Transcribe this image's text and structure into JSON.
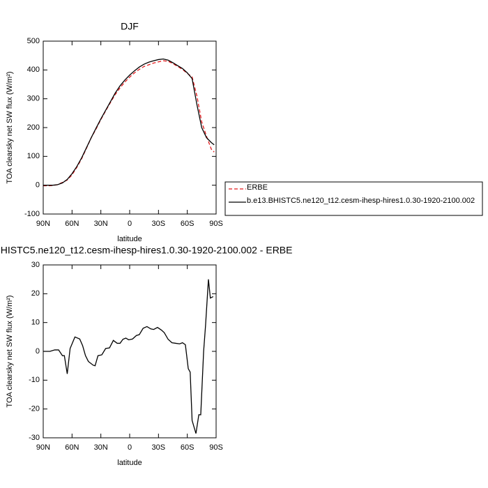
{
  "chart_data": [
    {
      "type": "line",
      "title": "DJF",
      "xlabel": "latitude",
      "ylabel": "TOA clearsky net SW flux (W/m²)",
      "xlim": [
        90,
        -90
      ],
      "ylim": [
        -100,
        500
      ],
      "xticks": [
        {
          "value": 90,
          "label": "90N"
        },
        {
          "value": 60,
          "label": "60N"
        },
        {
          "value": 30,
          "label": "30N"
        },
        0,
        {
          "value": -30,
          "label": "30S"
        },
        {
          "value": -60,
          "label": "60S"
        },
        {
          "value": -90,
          "label": "90S"
        }
      ],
      "yticks": [
        -100,
        0,
        100,
        200,
        300,
        400,
        500
      ],
      "legend": "right",
      "x": [
        90,
        85,
        80,
        75,
        70,
        65,
        60,
        55,
        50,
        45,
        40,
        35,
        30,
        25,
        20,
        15,
        10,
        5,
        0,
        -5,
        -10,
        -15,
        -20,
        -25,
        -30,
        -35,
        -40,
        -45,
        -50,
        -55,
        -60,
        -65,
        -70,
        -75,
        -80,
        -85,
        -88
      ],
      "series": [
        {
          "name": "ERBE",
          "color": "#e41a1c",
          "style": "dashed",
          "values": [
            -2,
            -2,
            -1,
            2,
            10,
            18,
            36,
            62,
            92,
            128,
            165,
            195,
            228,
            258,
            287,
            315,
            338,
            358,
            375,
            390,
            402,
            412,
            418,
            424,
            428,
            432,
            430,
            422,
            412,
            402,
            388,
            376,
            310,
            220,
            170,
            125,
            115
          ]
        },
        {
          "name": "b.e13.BHISTC5.ne120_t12.cesm-ihesp-hires1.0.30-1920-2100.002",
          "color": "#000000",
          "style": "solid",
          "values": [
            0,
            0,
            0,
            2,
            8,
            20,
            40,
            65,
            95,
            130,
            165,
            198,
            230,
            260,
            290,
            320,
            345,
            365,
            382,
            397,
            410,
            420,
            427,
            432,
            436,
            438,
            434,
            425,
            415,
            405,
            390,
            370,
            280,
            200,
            165,
            148,
            140
          ]
        }
      ]
    },
    {
      "type": "line",
      "title": "b.e13.BHISTC5.ne120_t12.cesm-ihesp-hires1.0.30-1920-2100.002 - ERBE",
      "xlabel": "latitude",
      "ylabel": "TOA clearsky net SW flux (W/m²)",
      "xlim": [
        90,
        -90
      ],
      "ylim": [
        -30,
        30
      ],
      "xticks": [
        {
          "value": 90,
          "label": "90N"
        },
        {
          "value": 60,
          "label": "60N"
        },
        {
          "value": 30,
          "label": "30N"
        },
        0,
        {
          "value": -30,
          "label": "30S"
        },
        {
          "value": -60,
          "label": "60S"
        },
        {
          "value": -90,
          "label": "90S"
        }
      ],
      "yticks": [
        -30,
        -20,
        -10,
        0,
        10,
        20,
        30
      ],
      "x": [
        90,
        83,
        78,
        74,
        70,
        68,
        65,
        62,
        57,
        52,
        49,
        46,
        43,
        38,
        36,
        33,
        29,
        25,
        21,
        17,
        13,
        10,
        7,
        4,
        1,
        -3,
        -7,
        -10,
        -14,
        -18,
        -22,
        -25,
        -29,
        -33,
        -36,
        -40,
        -44,
        -48,
        -52,
        -55,
        -58,
        -61,
        -63,
        -65,
        -69,
        -72,
        -74,
        -77,
        -79,
        -82,
        -84,
        -87
      ],
      "series": [
        {
          "color": "#000000",
          "style": "solid",
          "values": [
            0,
            0,
            0.5,
            0.5,
            -1.5,
            -1.5,
            -7.8,
            1,
            5,
            4.3,
            2,
            -1.5,
            -3.5,
            -4.8,
            -5,
            -1.5,
            -1.2,
            1,
            1.2,
            3.8,
            2.8,
            2.8,
            4.2,
            4.6,
            4,
            4.3,
            5.5,
            5.8,
            8,
            8.6,
            7.8,
            7.6,
            8.3,
            7.4,
            6.5,
            4.2,
            3,
            2.8,
            2.6,
            3,
            2.3,
            -6,
            -7.2,
            -24,
            -28.5,
            -22,
            -22,
            0,
            9,
            25,
            18.5,
            19
          ]
        }
      ]
    }
  ]
}
